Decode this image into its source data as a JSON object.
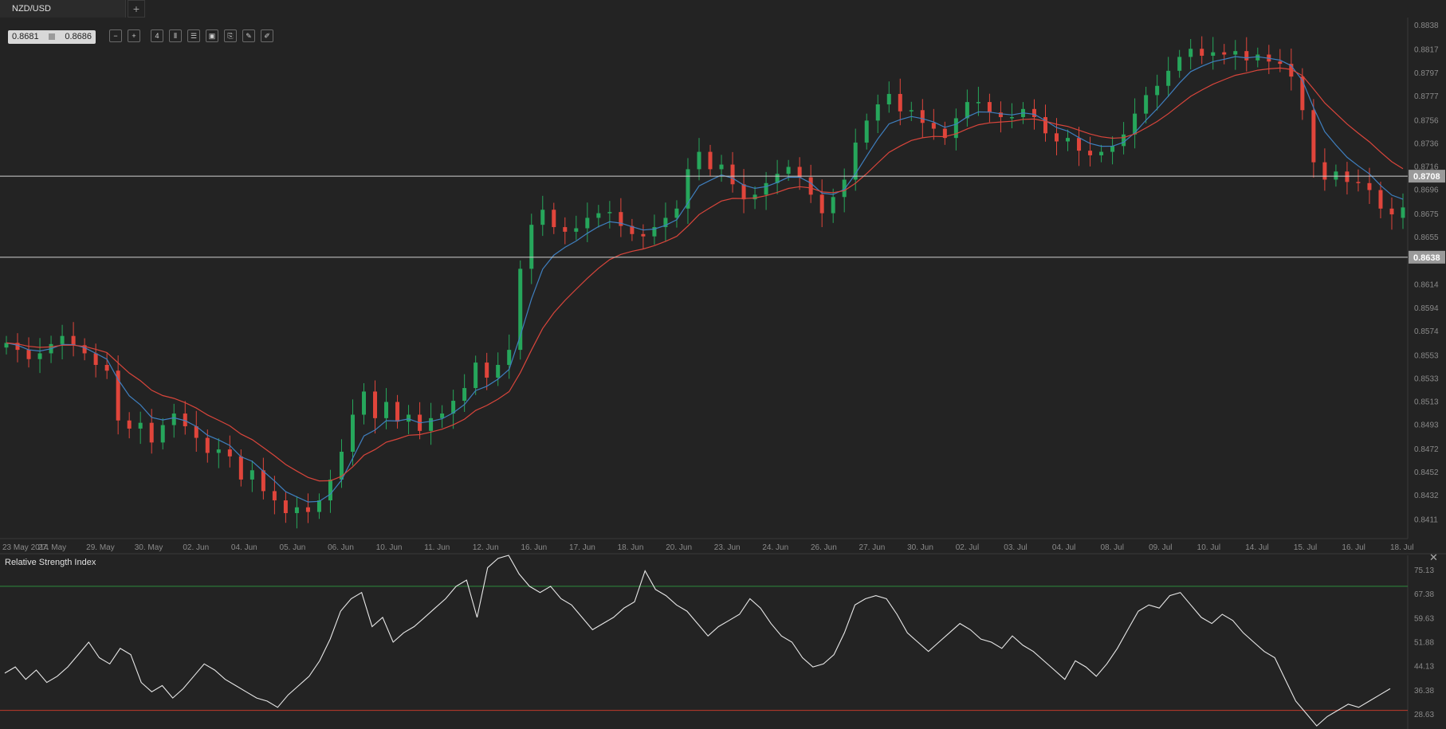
{
  "tab": {
    "title": "NZD/USD",
    "add_label": "+"
  },
  "quote": {
    "bid": "0.8681",
    "ask": "0.8686"
  },
  "toolbar": {
    "buttons": [
      {
        "name": "zoom-out-icon",
        "glyph": "−"
      },
      {
        "name": "zoom-in-icon",
        "glyph": "+"
      },
      {
        "name": "timeframe-icon",
        "glyph": "4"
      },
      {
        "name": "candles-icon",
        "glyph": "⫴"
      },
      {
        "name": "settings-icon",
        "glyph": "☰"
      },
      {
        "name": "chart-type-icon",
        "glyph": "▣"
      },
      {
        "name": "attach-icon",
        "glyph": "⎘"
      },
      {
        "name": "draw-icon",
        "glyph": "✎"
      },
      {
        "name": "pen-icon",
        "glyph": "✐"
      }
    ]
  },
  "colors": {
    "background": "#232323",
    "up": "#26a65b",
    "down": "#e0453b",
    "ma_fast": "#3f7fbf",
    "ma_slow": "#d9453b",
    "rsi_line": "#e8e8e8",
    "rsi_upper": "#2e8b3e",
    "rsi_lower": "#c0392b"
  },
  "chart_data": [
    {
      "type": "candlestick",
      "title": "NZD/USD",
      "ylim": [
        0.8395,
        0.8845
      ],
      "y_ticks": [
        "0.8838",
        "0.8817",
        "0.8797",
        "0.8777",
        "0.8756",
        "0.8736",
        "0.8716",
        "0.8696",
        "0.8675",
        "0.8655",
        "0.8614",
        "0.8594",
        "0.8574",
        "0.8553",
        "0.8533",
        "0.8513",
        "0.8493",
        "0.8472",
        "0.8452",
        "0.8432",
        "0.8411"
      ],
      "x_ticks": [
        "23 May 2014",
        "27. May",
        "29. May",
        "30. May",
        "02. Jun",
        "04. Jun",
        "05. Jun",
        "06. Jun",
        "10. Jun",
        "11. Jun",
        "12. Jun",
        "16. Jun",
        "17. Jun",
        "18. Jun",
        "20. Jun",
        "23. Jun",
        "24. Jun",
        "26. Jun",
        "27. Jun",
        "30. Jun",
        "02. Jul",
        "03. Jul",
        "04. Jul",
        "08. Jul",
        "09. Jul",
        "10. Jul",
        "14. Jul",
        "15. Jul",
        "16. Jul",
        "18. Jul"
      ],
      "close_path": [
        0.8564,
        0.8558,
        0.855,
        0.8555,
        0.8563,
        0.857,
        0.8562,
        0.8555,
        0.8545,
        0.854,
        0.8497,
        0.849,
        0.8495,
        0.8478,
        0.8493,
        0.8503,
        0.8492,
        0.8482,
        0.8469,
        0.8472,
        0.8466,
        0.8446,
        0.8454,
        0.8436,
        0.8428,
        0.8417,
        0.8422,
        0.8418,
        0.8428,
        0.8446,
        0.847,
        0.8502,
        0.8522,
        0.8499,
        0.8513,
        0.8496,
        0.8502,
        0.8488,
        0.8499,
        0.8503,
        0.8514,
        0.8525,
        0.8547,
        0.8534,
        0.8545,
        0.8558,
        0.8628,
        0.8666,
        0.8679,
        0.8664,
        0.866,
        0.8663,
        0.8672,
        0.8676,
        0.8677,
        0.8665,
        0.8658,
        0.8656,
        0.8664,
        0.8672,
        0.868,
        0.8714,
        0.8729,
        0.8714,
        0.8718,
        0.8701,
        0.8688,
        0.8692,
        0.8702,
        0.871,
        0.8716,
        0.8707,
        0.8692,
        0.8676,
        0.869,
        0.8705,
        0.8737,
        0.8756,
        0.877,
        0.8779,
        0.8764,
        0.8765,
        0.8754,
        0.8749,
        0.8741,
        0.8758,
        0.8772,
        0.8772,
        0.8763,
        0.8759,
        0.8759,
        0.8766,
        0.8759,
        0.8745,
        0.8738,
        0.8741,
        0.873,
        0.8726,
        0.8729,
        0.8734,
        0.8744,
        0.8762,
        0.8778,
        0.8786,
        0.8799,
        0.8811,
        0.8818,
        0.8812,
        0.8815,
        0.8813,
        0.8816,
        0.8808,
        0.8813,
        0.8807,
        0.8805,
        0.8794,
        0.8765,
        0.872,
        0.8705,
        0.8712,
        0.8703,
        0.8702,
        0.8696,
        0.868,
        0.8675
      ],
      "last_candle": {
        "open": 0.8672,
        "close": 0.8681
      },
      "horizontal_lines": [
        {
          "value": 0.8708,
          "label": "0.8708"
        },
        {
          "value": 0.8638,
          "label": "0.8638"
        }
      ],
      "moving_averages": [
        "fast",
        "slow"
      ],
      "grid": false
    },
    {
      "type": "line",
      "title": "Relative Strength Index",
      "ylim": [
        24,
        80
      ],
      "y_ticks": [
        "75.13",
        "67.38",
        "59.63",
        "51.88",
        "44.13",
        "36.38",
        "28.63"
      ],
      "levels": [
        70,
        30
      ],
      "values": [
        42,
        44,
        40,
        43,
        39,
        41,
        44,
        48,
        52,
        47,
        45,
        50,
        48,
        39,
        36,
        38,
        34,
        37,
        41,
        45,
        43,
        40,
        38,
        36,
        34,
        33,
        31,
        35,
        38,
        41,
        46,
        53,
        62,
        66,
        68,
        57,
        60,
        52,
        55,
        57,
        60,
        63,
        66,
        70,
        72,
        60,
        76,
        79,
        80,
        74,
        70,
        68,
        70,
        66,
        64,
        60,
        56,
        58,
        60,
        63,
        65,
        75,
        69,
        67,
        64,
        62,
        58,
        54,
        57,
        59,
        61,
        66,
        63,
        58,
        54,
        52,
        47,
        44,
        45,
        48,
        55,
        64,
        66,
        67,
        66,
        61,
        55,
        52,
        49,
        52,
        55,
        58,
        56,
        53,
        52,
        50,
        54,
        51,
        49,
        46,
        43,
        40,
        46,
        44,
        41,
        45,
        50,
        56,
        62,
        64,
        63,
        67,
        68,
        64,
        60,
        58,
        61,
        59,
        55,
        52,
        49,
        47,
        40,
        33,
        29,
        25,
        28,
        30,
        32,
        31,
        33,
        35,
        37
      ]
    }
  ]
}
